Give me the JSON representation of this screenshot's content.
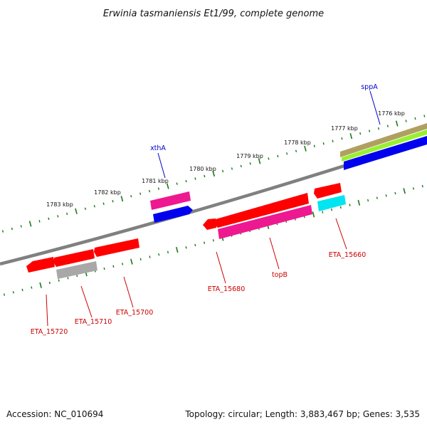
{
  "title": "Erwinia tasmaniensis Et1/99, complete genome",
  "footer": {
    "accession": "Accession: NC_010694",
    "topology": "Topology: circular; Length: 3,883,467 bp; Genes: 3,535"
  },
  "kbp_labels": [
    "1776 kbp",
    "1777 kbp",
    "1778 kbp",
    "1779 kbp",
    "1780 kbp",
    "1781 kbp",
    "1782 kbp",
    "1783 kbp"
  ],
  "gene_labels": [
    {
      "name": "sppA",
      "color": "#0000cc"
    },
    {
      "name": "xthA",
      "color": "#0000cc"
    },
    {
      "name": "ETA_15660",
      "color": "#cc0000"
    },
    {
      "name": "topB",
      "color": "#cc0000"
    },
    {
      "name": "ETA_15680",
      "color": "#cc0000"
    },
    {
      "name": "ETA_15700",
      "color": "#cc0000"
    },
    {
      "name": "ETA_15710",
      "color": "#cc0000"
    },
    {
      "name": "ETA_15720",
      "color": "#cc0000"
    }
  ],
  "colors": {
    "backbone": "#808080",
    "tick": "#1a7a1a",
    "cds_red": "#ff0000",
    "cds_magenta": "#ee1890",
    "cds_blue": "#0000ee",
    "cds_cyan": "#00e5f0",
    "cds_grey": "#a8a8a8",
    "cds_tan": "#b0a060",
    "cds_lime": "#98f030"
  }
}
